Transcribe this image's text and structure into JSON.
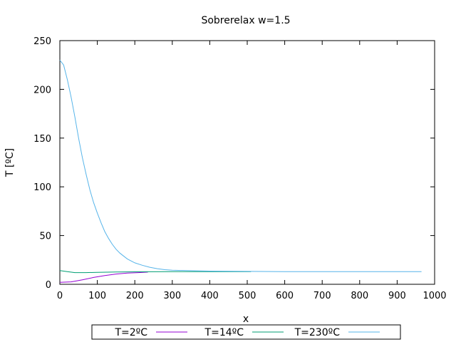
{
  "chart_data": {
    "type": "line",
    "title": "Sobrerelax w=1.5",
    "xlabel": "x",
    "ylabel": "T [ºC]",
    "xlim": [
      0,
      1000
    ],
    "ylim": [
      0,
      250
    ],
    "x_ticks": [
      0,
      100,
      200,
      300,
      400,
      500,
      600,
      700,
      800,
      900,
      1000
    ],
    "y_ticks": [
      0,
      50,
      100,
      150,
      200,
      250
    ],
    "grid": false,
    "legend_position": "bottom",
    "series": [
      {
        "name": "T=2ºC",
        "color": "#9400d3",
        "points": [
          [
            0,
            2
          ],
          [
            30,
            2.5
          ],
          [
            60,
            4.5
          ],
          [
            90,
            7
          ],
          [
            120,
            9
          ],
          [
            150,
            10.5
          ],
          [
            180,
            11.5
          ],
          [
            210,
            12
          ],
          [
            235,
            12.5
          ]
        ]
      },
      {
        "name": "T=14ºC",
        "color": "#009e73",
        "points": [
          [
            0,
            14
          ],
          [
            20,
            13
          ],
          [
            40,
            12
          ],
          [
            70,
            12
          ],
          [
            100,
            12.3
          ],
          [
            150,
            12.6
          ],
          [
            200,
            12.8
          ],
          [
            300,
            13
          ],
          [
            400,
            13
          ],
          [
            510,
            13
          ]
        ]
      },
      {
        "name": "T=230ºC",
        "color": "#56b4e9",
        "points": [
          [
            0,
            230
          ],
          [
            10,
            225
          ],
          [
            20,
            210
          ],
          [
            30,
            192
          ],
          [
            40,
            172
          ],
          [
            50,
            150
          ],
          [
            60,
            130
          ],
          [
            70,
            113
          ],
          [
            80,
            97
          ],
          [
            90,
            84
          ],
          [
            100,
            73
          ],
          [
            110,
            63
          ],
          [
            120,
            54
          ],
          [
            130,
            47
          ],
          [
            140,
            41
          ],
          [
            150,
            36
          ],
          [
            160,
            32
          ],
          [
            170,
            29
          ],
          [
            180,
            26
          ],
          [
            190,
            24
          ],
          [
            200,
            22
          ],
          [
            220,
            19.5
          ],
          [
            240,
            17.5
          ],
          [
            260,
            16
          ],
          [
            280,
            15
          ],
          [
            300,
            14.5
          ],
          [
            340,
            14
          ],
          [
            400,
            13.5
          ],
          [
            500,
            13.2
          ],
          [
            600,
            13
          ],
          [
            700,
            13
          ],
          [
            800,
            13
          ],
          [
            900,
            13
          ],
          [
            965,
            13
          ]
        ]
      }
    ]
  }
}
